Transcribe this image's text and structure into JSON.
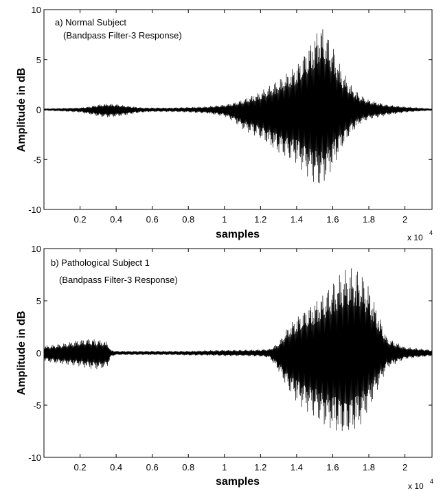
{
  "chart_data": [
    {
      "type": "line",
      "panel_id": "a",
      "annotation_line1": "a) Normal Subject",
      "annotation_line2": "(Bandpass Filter-3 Response)",
      "xlabel": "samples",
      "ylabel": "Amplitude in dB",
      "x_multiplier": "x 10",
      "x_multiplier_exp": "4",
      "xlim": [
        0,
        21500
      ],
      "ylim": [
        -10,
        10
      ],
      "xticks": [
        2000,
        4000,
        6000,
        8000,
        10000,
        12000,
        14000,
        16000,
        18000,
        20000
      ],
      "xtick_labels": [
        "0.2",
        "0.4",
        "0.6",
        "0.8",
        "1",
        "1.2",
        "1.4",
        "1.6",
        "1.8",
        "2"
      ],
      "yticks": [
        -10,
        -5,
        0,
        5,
        10
      ],
      "ytick_labels": [
        "-10",
        "-5",
        "0",
        "5",
        "10"
      ],
      "series": [
        {
          "color": "#000000",
          "envelope_x": [
            0,
            1000,
            2000,
            2500,
            3000,
            3500,
            4000,
            4500,
            5000,
            5500,
            6000,
            7000,
            8000,
            9000,
            10000,
            10500,
            11000,
            12000,
            13000,
            14000,
            14500,
            15000,
            15300,
            15600,
            16000,
            16500,
            17000,
            17500,
            18000,
            19000,
            20000,
            21500
          ],
          "envelope_upper": [
            0.1,
            0.15,
            0.2,
            0.3,
            0.5,
            0.6,
            0.55,
            0.4,
            0.3,
            0.2,
            0.2,
            0.2,
            0.25,
            0.3,
            0.5,
            0.7,
            1.0,
            1.8,
            3.0,
            4.5,
            6.0,
            7.5,
            8.7,
            8.0,
            6.5,
            4.0,
            2.5,
            1.5,
            1.0,
            0.5,
            0.3,
            0.1
          ],
          "envelope_lower": [
            -0.1,
            -0.2,
            -0.3,
            -0.5,
            -0.7,
            -0.8,
            -0.75,
            -0.6,
            -0.4,
            -0.3,
            -0.25,
            -0.25,
            -0.3,
            -0.4,
            -0.7,
            -1.2,
            -2.0,
            -3.0,
            -4.5,
            -5.5,
            -6.5,
            -7.5,
            -7.8,
            -7.2,
            -6.0,
            -4.0,
            -2.5,
            -1.5,
            -1.0,
            -0.6,
            -0.3,
            -0.1
          ]
        }
      ]
    },
    {
      "type": "line",
      "panel_id": "b",
      "annotation_line1": "b) Pathological Subject 1",
      "annotation_line2": "(Bandpass Filter-3 Response)",
      "xlabel": "samples",
      "ylabel": "Amplitude in dB",
      "x_multiplier": "x 10",
      "x_multiplier_exp": "4",
      "xlim": [
        0,
        21500
      ],
      "ylim": [
        -10,
        10
      ],
      "xticks": [
        2000,
        4000,
        6000,
        8000,
        10000,
        12000,
        14000,
        16000,
        18000,
        20000
      ],
      "xtick_labels": [
        "0.2",
        "0.4",
        "0.6",
        "0.8",
        "1",
        "1.2",
        "1.4",
        "1.6",
        "1.8",
        "2"
      ],
      "yticks": [
        -10,
        -5,
        0,
        5,
        10
      ],
      "ytick_labels": [
        "-10",
        "-5",
        "0",
        "5",
        "10"
      ],
      "series": [
        {
          "color": "#000000",
          "envelope_x": [
            0,
            500,
            1000,
            1500,
            2000,
            2500,
            3000,
            3500,
            3700,
            4000,
            5000,
            6000,
            7000,
            8000,
            9000,
            10000,
            11000,
            12000,
            12500,
            13000,
            13500,
            14000,
            14500,
            15000,
            15500,
            16000,
            16500,
            17000,
            17500,
            18000,
            18500,
            19000,
            20000,
            21500
          ],
          "envelope_upper": [
            0.7,
            0.8,
            0.9,
            1.1,
            1.3,
            1.4,
            1.3,
            1.1,
            0.3,
            0.2,
            0.2,
            0.2,
            0.2,
            0.2,
            0.25,
            0.3,
            0.3,
            0.35,
            0.4,
            1.0,
            2.5,
            3.5,
            4.3,
            5.0,
            5.8,
            6.8,
            7.8,
            8.2,
            8.0,
            6.5,
            4.0,
            1.5,
            0.6,
            0.3
          ],
          "envelope_lower": [
            -0.8,
            -1.0,
            -1.1,
            -1.2,
            -1.3,
            -1.5,
            -1.6,
            -1.4,
            -0.4,
            -0.2,
            -0.2,
            -0.2,
            -0.2,
            -0.25,
            -0.25,
            -0.3,
            -0.3,
            -0.35,
            -0.5,
            -1.8,
            -3.5,
            -4.8,
            -5.5,
            -6.2,
            -7.0,
            -7.5,
            -8.0,
            -7.9,
            -7.2,
            -5.5,
            -3.5,
            -1.5,
            -0.6,
            -0.3
          ]
        }
      ]
    }
  ]
}
